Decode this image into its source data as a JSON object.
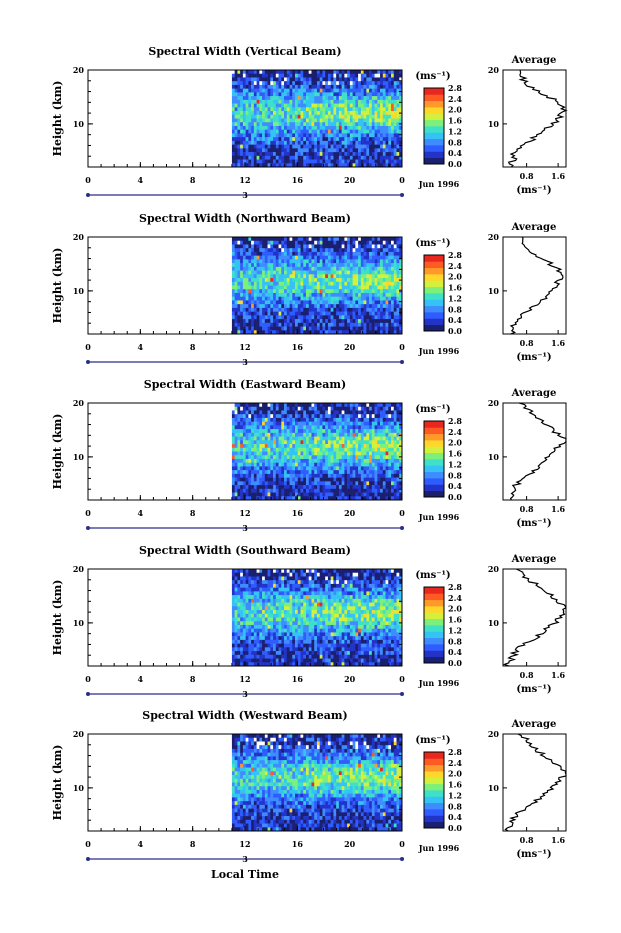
{
  "chart_data": {
    "type": "heatmap",
    "panels": [
      {
        "title": "Spectral Width (Vertical Beam)",
        "avg_profile": [
          0.35,
          0.4,
          0.5,
          0.45,
          0.55,
          0.7,
          0.9,
          1.05,
          1.2,
          1.35,
          1.5,
          1.6,
          1.7,
          1.78,
          1.72,
          1.55,
          1.35,
          1.1,
          0.9,
          0.8,
          0.7,
          0.65,
          0.6
        ]
      },
      {
        "title": "Spectral Width (Northward Beam)",
        "avg_profile": [
          0.4,
          0.45,
          0.5,
          0.55,
          0.65,
          0.8,
          0.95,
          1.1,
          1.25,
          1.35,
          1.45,
          1.55,
          1.62,
          1.7,
          1.65,
          1.55,
          1.4,
          1.2,
          1.0,
          0.85,
          0.75,
          0.65,
          0.6
        ]
      },
      {
        "title": "Spectral Width (Eastward Beam)",
        "avg_profile": [
          0.35,
          0.4,
          0.45,
          0.5,
          0.6,
          0.75,
          0.9,
          1.05,
          1.2,
          1.3,
          1.4,
          1.5,
          1.6,
          1.72,
          1.78,
          1.6,
          1.45,
          1.3,
          1.15,
          1.05,
          0.9,
          0.8,
          0.6
        ]
      },
      {
        "title": "Spectral Width (Southward Beam)",
        "avg_profile": [
          0.3,
          0.35,
          0.45,
          0.5,
          0.6,
          0.75,
          0.95,
          1.1,
          1.25,
          1.4,
          1.55,
          1.65,
          1.75,
          1.8,
          1.72,
          1.55,
          1.4,
          1.25,
          1.1,
          0.95,
          0.8,
          0.7,
          0.6
        ]
      },
      {
        "title": "Spectral Width (Westward Beam)",
        "avg_profile": [
          0.3,
          0.35,
          0.4,
          0.5,
          0.6,
          0.75,
          0.9,
          1.05,
          1.2,
          1.35,
          1.5,
          1.6,
          1.7,
          1.78,
          1.7,
          1.55,
          1.4,
          1.25,
          1.1,
          1.0,
          0.85,
          0.75,
          0.6
        ]
      }
    ],
    "ylabel": "Height (km)",
    "yticks": [
      "20",
      "10"
    ],
    "ylim": [
      2,
      20
    ],
    "xticks": [
      "0",
      "4",
      "8",
      "12",
      "16",
      "20",
      "0"
    ],
    "date_label": "3",
    "month_label": "Jun 1996",
    "xlabel": "Local Time",
    "data_start_hour": 11,
    "colorbar": {
      "unit_label": "(ms⁻¹)",
      "ticks": [
        "2.8",
        "2.4",
        "2.0",
        "1.6",
        "1.2",
        "0.8",
        "0.4",
        "0.0"
      ],
      "range": [
        0,
        2.8
      ],
      "colors": [
        "#1a1f6e",
        "#2233c8",
        "#2f5cff",
        "#3f8cff",
        "#35c2f5",
        "#3fe0c8",
        "#7cf07a",
        "#d2f03c",
        "#ffd62a",
        "#ff9a2a",
        "#ff5a24",
        "#e8281e"
      ]
    },
    "average": {
      "title": "Average",
      "yticks": [
        "20",
        "10"
      ],
      "xticks": [
        "0.8",
        "1.6"
      ],
      "xlim": [
        0.2,
        1.8
      ],
      "unit_label": "(ms⁻¹)"
    }
  }
}
